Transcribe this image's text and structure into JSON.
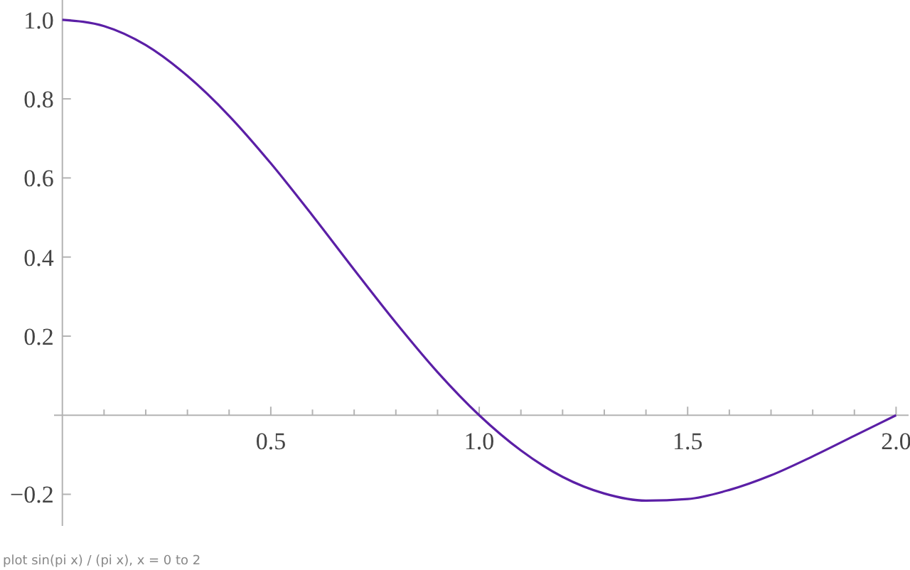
{
  "chart_data": {
    "type": "line",
    "x": [
      0,
      0.1,
      0.2,
      0.3,
      0.4,
      0.5,
      0.6,
      0.7,
      0.8,
      0.9,
      1.0,
      1.1,
      1.2,
      1.3,
      1.4,
      1.5,
      1.6,
      1.7,
      1.8,
      1.9,
      2.0
    ],
    "series": [
      {
        "color": "#5b1fa6",
        "values": [
          1,
          0.984,
          0.936,
          0.858,
          0.757,
          0.637,
          0.505,
          0.368,
          0.234,
          0.109,
          0,
          -0.089,
          -0.156,
          -0.198,
          -0.216,
          -0.212,
          -0.189,
          -0.152,
          -0.104,
          -0.052,
          0
        ]
      }
    ],
    "xlim": [
      -0.02,
      2.03
    ],
    "ylim": [
      -0.28,
      1.05
    ],
    "xticks": [
      {
        "value": 0.1,
        "label": null
      },
      {
        "value": 0.2,
        "label": null
      },
      {
        "value": 0.3,
        "label": null
      },
      {
        "value": 0.4,
        "label": null
      },
      0.5,
      {
        "value": 0.6,
        "label": null
      },
      {
        "value": 0.7,
        "label": null
      },
      {
        "value": 0.8,
        "label": null
      },
      {
        "value": 0.9,
        "label": null
      },
      {
        "value": 1,
        "label": "1.0"
      },
      {
        "value": 1.1,
        "label": null
      },
      {
        "value": 1.2,
        "label": null
      },
      {
        "value": 1.3,
        "label": null
      },
      {
        "value": 1.4,
        "label": null
      },
      1.5,
      {
        "value": 1.6,
        "label": null
      },
      {
        "value": 1.7,
        "label": null
      },
      {
        "value": 1.8,
        "label": null
      },
      {
        "value": 1.9,
        "label": null
      },
      {
        "value": 2,
        "label": "2.0"
      }
    ],
    "yticks": [
      -0.2,
      0.2,
      0.4,
      0.6,
      0.8,
      {
        "value": 1,
        "label": "1.0"
      }
    ],
    "grid": false,
    "marker": "none",
    "line_style": "solid",
    "annotations": [
      "plot sin(pi x) / (pi x), x = 0 to 2"
    ]
  }
}
